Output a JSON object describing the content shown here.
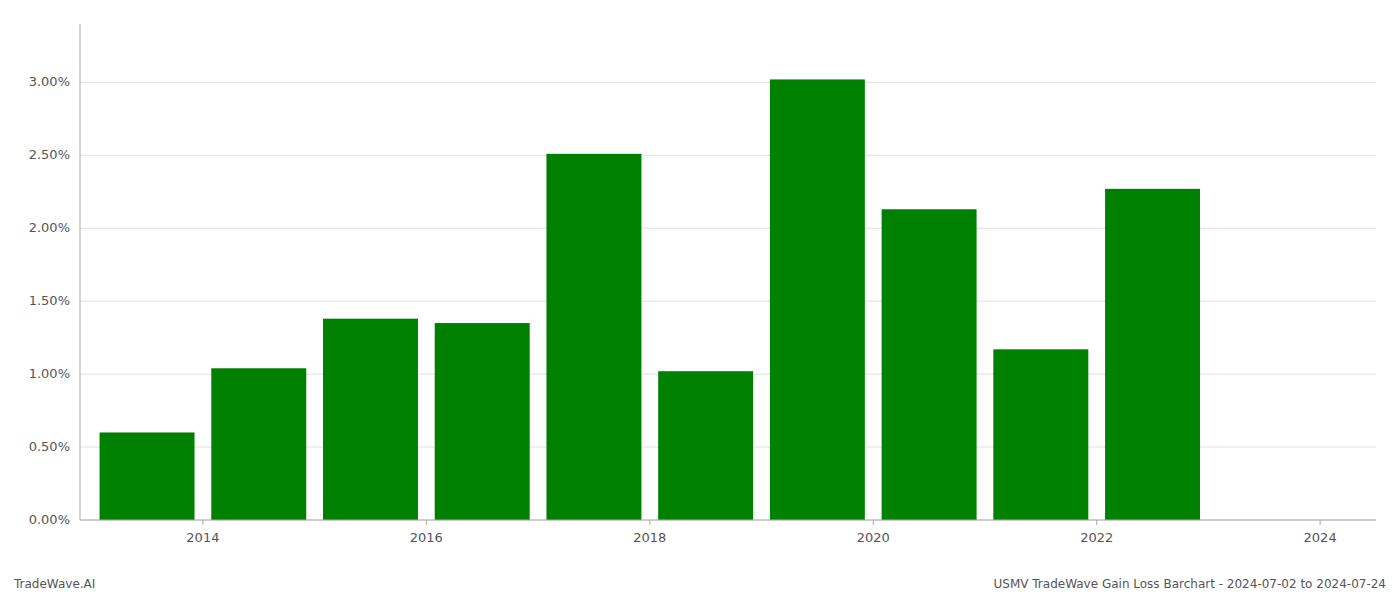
{
  "chart_data": {
    "type": "bar",
    "x": [
      2014,
      2015,
      2016,
      2017,
      2018,
      2019,
      2020,
      2021,
      2022,
      2023
    ],
    "values": [
      0.006,
      0.0104,
      0.0138,
      0.0135,
      0.0251,
      0.0102,
      0.0302,
      0.0213,
      0.0117,
      0.0227
    ],
    "color": "#008000",
    "xlim": [
      2013.4,
      2025.0
    ],
    "xticks": [
      {
        "value": 2014.5,
        "label": "2014"
      },
      {
        "value": 2016.5,
        "label": "2016"
      },
      {
        "value": 2018.5,
        "label": "2018"
      },
      {
        "value": 2020.5,
        "label": "2020"
      },
      {
        "value": 2022.5,
        "label": "2022"
      },
      {
        "value": 2024.5,
        "label": "2024"
      }
    ],
    "ylim": [
      0,
      0.034
    ],
    "yticks": [
      {
        "value": 0.0,
        "label": "0.00%"
      },
      {
        "value": 0.005,
        "label": "0.50%"
      },
      {
        "value": 0.01,
        "label": "1.00%"
      },
      {
        "value": 0.015,
        "label": "1.50%"
      },
      {
        "value": 0.02,
        "label": "2.00%"
      },
      {
        "value": 0.025,
        "label": "2.50%"
      },
      {
        "value": 0.03,
        "label": "3.00%"
      }
    ],
    "grid": true,
    "annotations": [
      "TradeWave.AI",
      "USMV TradeWave Gain Loss Barchart - 2024-07-02 to 2024-07-24"
    ]
  }
}
